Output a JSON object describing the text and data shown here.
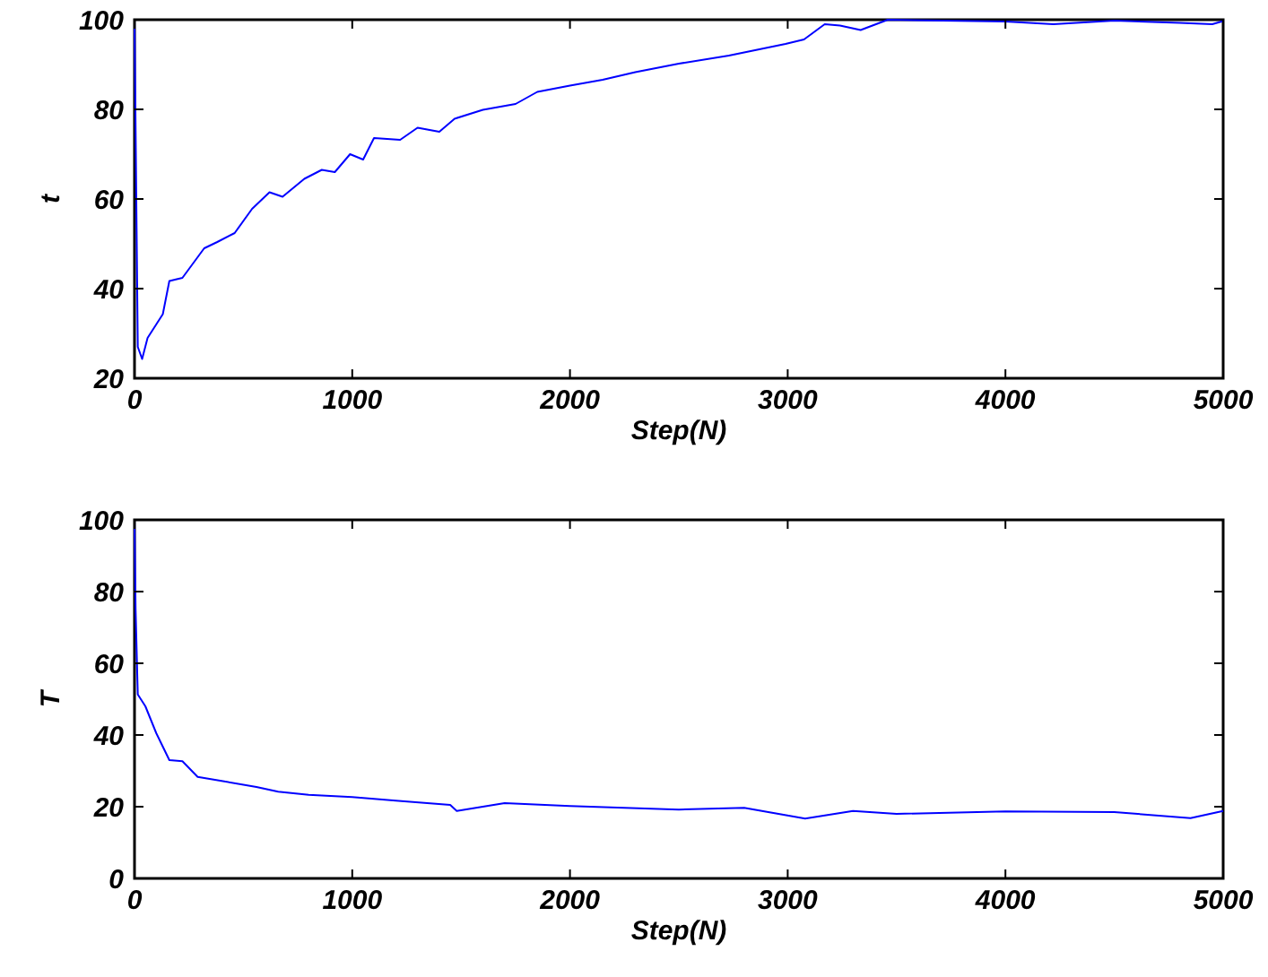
{
  "chart_data": [
    {
      "type": "line",
      "xlabel": "Step(N)",
      "ylabel": "t",
      "xlim": [
        0,
        5000
      ],
      "ylim": [
        20,
        100
      ],
      "xticks": [
        0,
        1000,
        2000,
        3000,
        4000,
        5000
      ],
      "yticks": [
        20,
        40,
        60,
        80,
        100
      ],
      "grid": false,
      "series": [
        {
          "color": "#0000ff",
          "x": [
            0,
            15,
            35,
            60,
            130,
            160,
            220,
            320,
            380,
            460,
            540,
            620,
            680,
            780,
            860,
            920,
            990,
            1050,
            1100,
            1220,
            1300,
            1400,
            1470,
            1600,
            1750,
            1850,
            2000,
            2150,
            2300,
            2500,
            2730,
            2990,
            3075,
            3170,
            3240,
            3335,
            3460,
            4000,
            4220,
            4500,
            4800,
            4950,
            5000
          ],
          "values": [
            100,
            27,
            24.3,
            29,
            34.3,
            41.7,
            42.4,
            49,
            50.4,
            52.4,
            57.8,
            61.5,
            60.5,
            64.5,
            66.5,
            66,
            70,
            68.8,
            73.6,
            73.2,
            75.9,
            75,
            77.9,
            79.9,
            81.2,
            83.9,
            85.3,
            86.6,
            88.3,
            90.2,
            92,
            94.6,
            95.6,
            99,
            98.7,
            97.7,
            100,
            99.6,
            99,
            99.8,
            99.3,
            99,
            99.7
          ]
        }
      ]
    },
    {
      "type": "line",
      "xlabel": "Step(N)",
      "ylabel": "T",
      "xlim": [
        0,
        5000
      ],
      "ylim": [
        0,
        100
      ],
      "xticks": [
        0,
        1000,
        2000,
        3000,
        4000,
        5000
      ],
      "yticks": [
        0,
        20,
        40,
        60,
        80,
        100
      ],
      "grid": false,
      "series": [
        {
          "color": "#0000ff",
          "x": [
            0,
            5,
            15,
            50,
            100,
            160,
            220,
            290,
            400,
            560,
            660,
            800,
            1000,
            1200,
            1450,
            1480,
            1700,
            2000,
            2500,
            2800,
            3080,
            3300,
            3500,
            4000,
            4500,
            4850,
            5000
          ],
          "values": [
            100,
            75,
            51.3,
            48,
            40.5,
            33,
            32.7,
            28.3,
            27.2,
            25.5,
            24.2,
            23.3,
            22.7,
            21.7,
            20.5,
            18.8,
            21,
            20.2,
            19.2,
            19.7,
            16.7,
            18.8,
            18,
            18.7,
            18.5,
            16.8,
            18.8
          ]
        }
      ]
    }
  ]
}
